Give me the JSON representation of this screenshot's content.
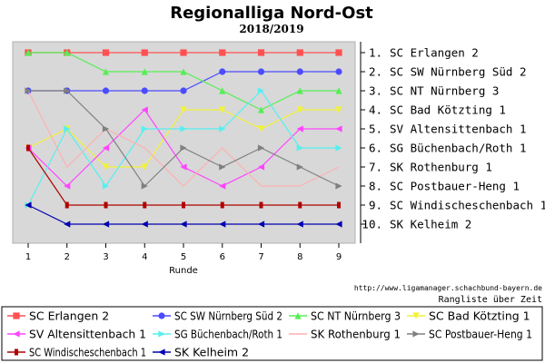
{
  "chart_data": {
    "type": "line",
    "title": "Regionalliga Nord-Ost",
    "subtitle": "2018/2019",
    "xlabel": "Runde",
    "x": [
      1,
      2,
      3,
      4,
      5,
      6,
      7,
      8,
      9
    ],
    "ylim": [
      10,
      1
    ],
    "y_inverted": true,
    "grid": false,
    "standings": [
      "1. SC Erlangen 2",
      "2. SC SW Nürnberg Süd 2",
      "3. SC NT Nürnberg 3",
      "4. SC Bad Kötzting 1",
      "5. SV Altensittenbach 1",
      "6. SG Büchenbach/Roth 1",
      "7. SK Rothenburg 1",
      "8. SC Postbauer-Heng 1",
      "9. SC Windischeschenbach 1",
      "10. SK Kelheim 2"
    ],
    "series": [
      {
        "name": "SC Erlangen 2",
        "color": "#ff5050",
        "marker": "square",
        "values": [
          1,
          1,
          1,
          1,
          1,
          1,
          1,
          1,
          1
        ]
      },
      {
        "name": "SC SW Nürnberg Süd 2",
        "color": "#4b4bff",
        "marker": "circle",
        "values": [
          3,
          3,
          3,
          3,
          3,
          2,
          2,
          2,
          2
        ]
      },
      {
        "name": "SC NT Nürnberg 3",
        "color": "#55ee55",
        "marker": "triangle-up",
        "values": [
          1,
          1,
          2,
          2,
          2,
          3,
          4,
          3,
          3
        ]
      },
      {
        "name": "SC Bad Kötzting 1",
        "color": "#f2f238",
        "marker": "triangle-down",
        "values": [
          6,
          5,
          7,
          7,
          4,
          4,
          5,
          4,
          4
        ]
      },
      {
        "name": "SV Altensittenbach 1",
        "color": "#ff44ff",
        "marker": "triangle-left",
        "values": [
          6,
          8,
          6,
          4,
          7,
          8,
          7,
          5,
          5
        ]
      },
      {
        "name": "SG Büchenbach/Roth 1",
        "color": "#55f0f0",
        "marker": "triangle-right",
        "values": [
          9,
          5,
          8,
          5,
          5,
          5,
          3,
          6,
          6
        ]
      },
      {
        "name": "SK Rothenburg 1",
        "color": "#ffb0b0",
        "marker": "none",
        "values": [
          3,
          7,
          5,
          6,
          8,
          6,
          8,
          8,
          7
        ]
      },
      {
        "name": "SC Postbauer-Heng 1",
        "color": "#808080",
        "marker": "triangle-right",
        "values": [
          3,
          3,
          5,
          8,
          6,
          7,
          6,
          7,
          8
        ]
      },
      {
        "name": "SC Windischeschenbach 1",
        "color": "#b00000",
        "marker": "rect",
        "values": [
          6,
          9,
          9,
          9,
          9,
          9,
          9,
          9,
          9
        ]
      },
      {
        "name": "SK Kelheim 2",
        "color": "#0000b0",
        "marker": "triangle-left",
        "values": [
          9,
          10,
          10,
          10,
          10,
          10,
          10,
          10,
          10
        ]
      }
    ]
  },
  "credit": "http://www.ligamanager.schachbund-bayern.de",
  "caption": "Rangliste über Zeit"
}
